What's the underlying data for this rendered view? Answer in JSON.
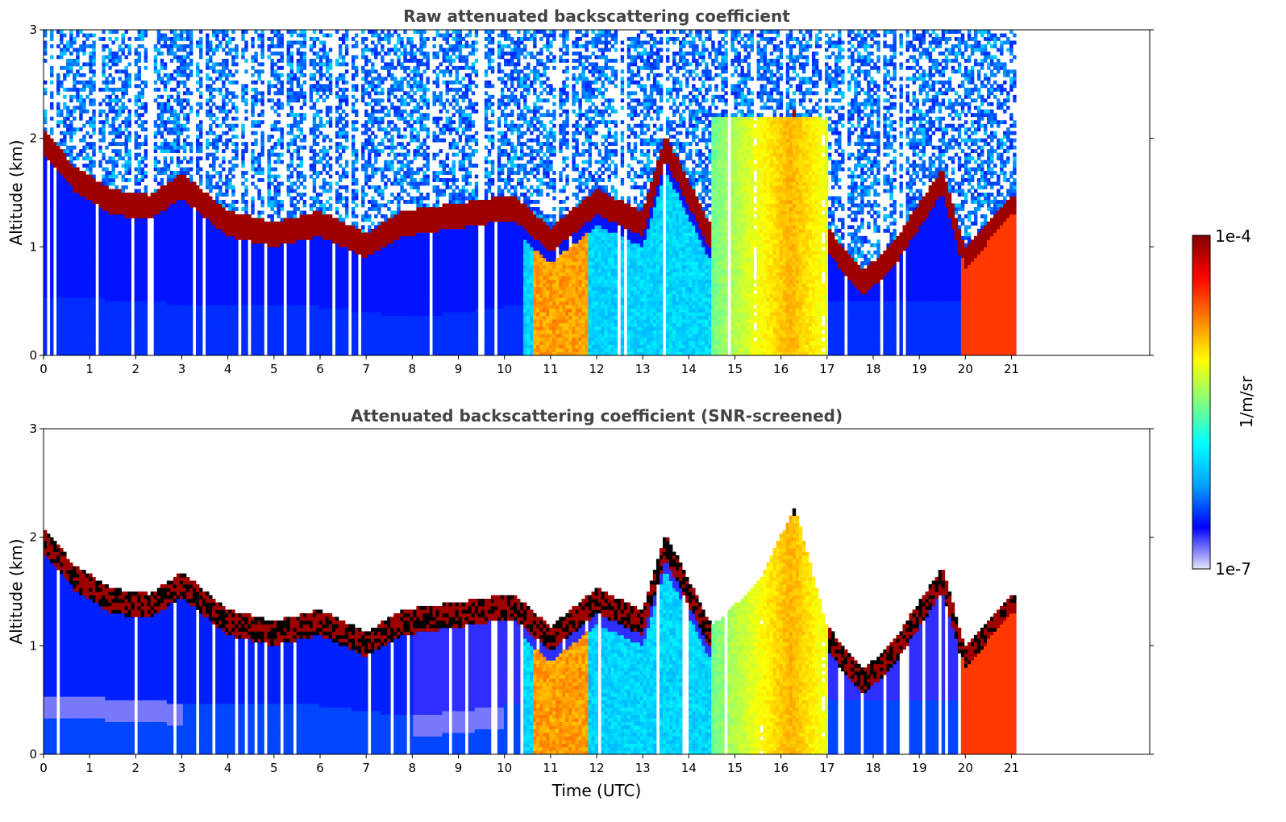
{
  "chart_data": [
    {
      "type": "heatmap",
      "title": "Raw attenuated backscattering coefficient",
      "xlabel": "",
      "ylabel": "Altitude (km)",
      "xlim": [
        0,
        24
      ],
      "ylim": [
        0,
        3
      ],
      "xticks": [
        "0",
        "1",
        "2",
        "3",
        "4",
        "5",
        "6",
        "7",
        "8",
        "9",
        "10",
        "11",
        "12",
        "13",
        "14",
        "15",
        "16",
        "17",
        "18",
        "19",
        "20",
        "21"
      ],
      "yticks": [
        "0",
        "1",
        "2",
        "3"
      ],
      "data_end_hour": 21.1,
      "screened": false
    },
    {
      "type": "heatmap",
      "title": "Attenuated backscattering coefficient (SNR-screened)",
      "xlabel": "Time (UTC)",
      "ylabel": "Altitude (km)",
      "xlim": [
        0,
        24
      ],
      "ylim": [
        0,
        3
      ],
      "xticks": [
        "0",
        "1",
        "2",
        "3",
        "4",
        "5",
        "6",
        "7",
        "8",
        "9",
        "10",
        "11",
        "12",
        "13",
        "14",
        "15",
        "16",
        "17",
        "18",
        "19",
        "20",
        "21"
      ],
      "yticks": [
        "0",
        "1",
        "2",
        "3"
      ],
      "data_end_hour": 21.1,
      "screened": true
    }
  ],
  "colorbar": {
    "min_label": "1e-7",
    "max_label": "1e-4",
    "unit_label": "1/m/sr",
    "scale": "log",
    "colors": [
      "#e6e6fa",
      "#0000ff",
      "#00a0ff",
      "#00ffff",
      "#80ff80",
      "#ffff00",
      "#ff8000",
      "#ff0000",
      "#800000"
    ]
  },
  "layers": {
    "boundary_layer_km": [
      [
        0,
        0.55
      ],
      [
        2,
        0.5
      ],
      [
        4,
        0.45
      ],
      [
        6,
        0.45
      ],
      [
        8,
        0.35
      ],
      [
        10,
        0.45
      ],
      [
        14,
        0.5
      ],
      [
        21.1,
        0.5
      ]
    ],
    "cloud_base_km": [
      [
        0,
        1.9
      ],
      [
        0.7,
        1.55
      ],
      [
        1.5,
        1.35
      ],
      [
        2.3,
        1.3
      ],
      [
        3,
        1.5
      ],
      [
        4,
        1.15
      ],
      [
        5,
        1.05
      ],
      [
        6,
        1.15
      ],
      [
        7,
        0.95
      ],
      [
        7.8,
        1.15
      ],
      [
        10.2,
        1.3
      ],
      [
        11,
        1.0
      ],
      [
        12,
        1.35
      ],
      [
        13,
        1.15
      ],
      [
        13.5,
        1.85
      ],
      [
        14.5,
        1.0
      ],
      [
        15.5,
        1.4
      ],
      [
        16.3,
        2.1
      ],
      [
        17,
        1.0
      ],
      [
        17.8,
        0.6
      ],
      [
        18.5,
        0.9
      ],
      [
        19.5,
        1.55
      ],
      [
        20,
        0.8
      ],
      [
        21,
        1.3
      ]
    ],
    "smoke_plume": {
      "start_hour": 14.5,
      "end_hour": 17.0,
      "top_km": 2.2
    }
  }
}
